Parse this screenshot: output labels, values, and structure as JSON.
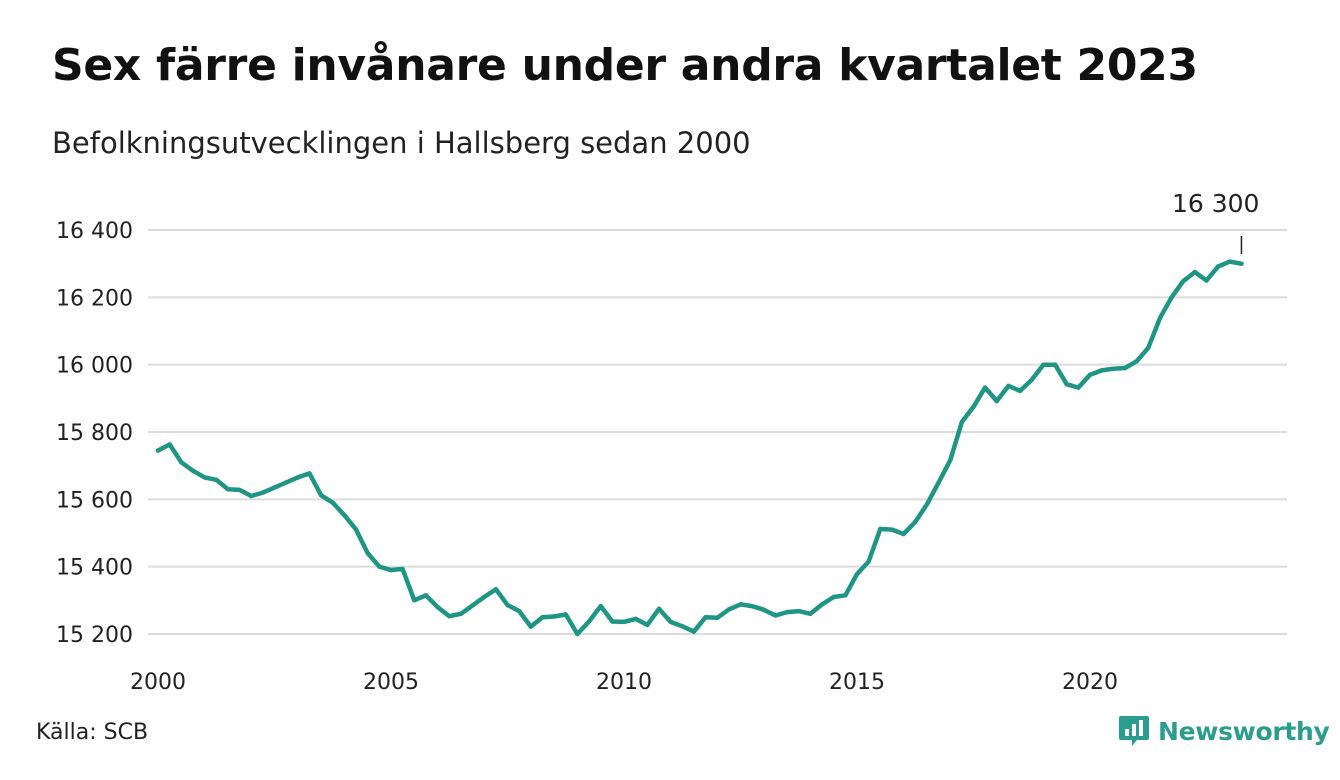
{
  "header": {
    "title": "Sex färre invånare under andra kvartalet 2023",
    "subtitle": "Befolkningsutvecklingen i Hallsberg sedan 2000"
  },
  "footer": {
    "source": "Källa: SCB",
    "brand": "Newsworthy"
  },
  "icons": {
    "brand_logo": "newsworthy-logo-icon"
  },
  "colors": {
    "line": "#1f9585",
    "grid": "#dcdcdc",
    "brand": "#2a9d8f"
  },
  "chart_data": {
    "type": "line",
    "title": "Sex färre invånare under andra kvartalet 2023",
    "subtitle": "Befolkningsutvecklingen i Hallsberg sedan 2000",
    "xlabel": "",
    "ylabel": "",
    "xlim": [
      2000,
      2024
    ],
    "ylim": [
      15170,
      16430
    ],
    "grid": true,
    "x_ticks": [
      2000,
      2005,
      2010,
      2015,
      2020
    ],
    "x_tick_labels": [
      "2000",
      "2005",
      "2010",
      "2015",
      "2020"
    ],
    "y_ticks": [
      15200,
      15400,
      15600,
      15800,
      16000,
      16200,
      16400
    ],
    "y_tick_labels": [
      "15 200",
      "15 400",
      "15 600",
      "15 800",
      "16 000",
      "16 200",
      "16 400"
    ],
    "annotation": {
      "label": "16 300",
      "x": 2023.25,
      "y": 16300
    },
    "series": [
      {
        "x": [
          2000,
          2000.25,
          2000.5,
          2000.75,
          2001,
          2001.25,
          2001.5,
          2001.75,
          2002,
          2002.25,
          2002.5,
          2002.75,
          2003,
          2003.25,
          2003.5,
          2003.75,
          2004,
          2004.25,
          2004.5,
          2004.75,
          2005,
          2005.25,
          2005.5,
          2005.75,
          2006,
          2006.25,
          2006.5,
          2006.75,
          2007,
          2007.25,
          2007.5,
          2007.75,
          2008,
          2008.25,
          2008.5,
          2008.75,
          2009,
          2009.25,
          2009.5,
          2009.75,
          2010,
          2010.25,
          2010.5,
          2010.75,
          2011,
          2011.25,
          2011.5,
          2011.75,
          2012,
          2012.25,
          2012.5,
          2012.75,
          2013,
          2013.25,
          2013.5,
          2013.75,
          2014,
          2014.25,
          2014.5,
          2014.75,
          2015,
          2015.25,
          2015.5,
          2015.75,
          2016,
          2016.25,
          2016.5,
          2016.75,
          2017,
          2017.25,
          2017.5,
          2017.75,
          2018,
          2018.25,
          2018.5,
          2018.75,
          2019,
          2019.25,
          2019.5,
          2019.75,
          2020,
          2020.25,
          2020.5,
          2020.75,
          2021,
          2021.25,
          2021.5,
          2021.75,
          2022,
          2022.25,
          2022.5,
          2022.75,
          2023,
          2023.25
        ],
        "values": [
          15745,
          15763,
          15710,
          15685,
          15665,
          15658,
          15630,
          15628,
          15610,
          15620,
          15635,
          15650,
          15665,
          15677,
          15612,
          15590,
          15553,
          15510,
          15440,
          15400,
          15390,
          15393,
          15300,
          15315,
          15280,
          15253,
          15260,
          15285,
          15310,
          15333,
          15286,
          15268,
          15222,
          15250,
          15252,
          15258,
          15200,
          15237,
          15283,
          15237,
          15236,
          15245,
          15227,
          15275,
          15236,
          15223,
          15207,
          15250,
          15248,
          15273,
          15288,
          15283,
          15272,
          15255,
          15265,
          15268,
          15260,
          15288,
          15310,
          15315,
          15378,
          15415,
          15512,
          15510,
          15497,
          15533,
          15585,
          15650,
          15716,
          15830,
          15875,
          15932,
          15892,
          15937,
          15922,
          15955,
          16000,
          16000,
          15942,
          15932,
          15970,
          15983,
          15988,
          15990,
          16010,
          16050,
          16138,
          16200,
          16248,
          16275,
          16250,
          16292,
          16306,
          16300
        ]
      }
    ]
  }
}
